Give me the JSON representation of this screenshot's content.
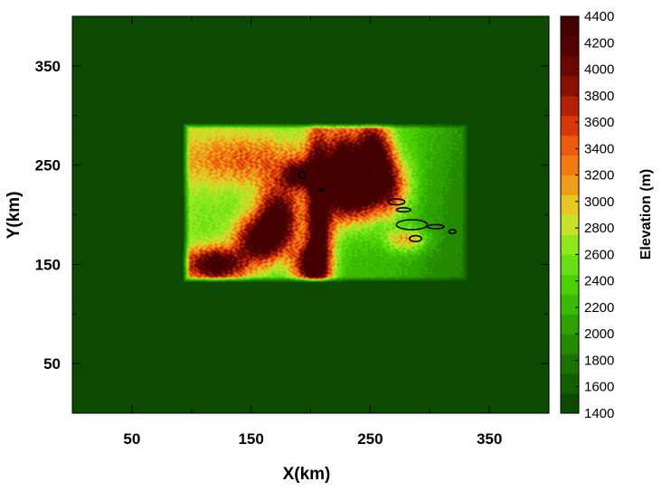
{
  "chart_data": {
    "type": "heatmap",
    "title": "",
    "xlabel": "X(km)",
    "ylabel": "Y(km)",
    "xlim": [
      0,
      400
    ],
    "ylim": [
      0,
      400
    ],
    "x_ticks": [
      50,
      150,
      250,
      350
    ],
    "y_ticks": [
      50,
      150,
      250,
      350
    ],
    "minor_ticks": [
      0,
      100,
      200,
      300,
      400
    ],
    "grid": false,
    "background_level": 1400,
    "terrain_extent": {
      "x": [
        95,
        330
      ],
      "y": [
        135,
        290
      ]
    },
    "contour_color": "#000000",
    "colorbar": {
      "label": "Elevation (m)",
      "min": 1400,
      "max": 4400,
      "step": 150,
      "tick_labels": [
        1400,
        1600,
        1800,
        2000,
        2200,
        2400,
        2600,
        2800,
        3000,
        3200,
        3400,
        3600,
        3800,
        4000,
        4200,
        4400
      ],
      "colors": [
        "#0c4a00",
        "#125e00",
        "#1b7200",
        "#248a00",
        "#2ea200",
        "#3aba00",
        "#4ed000",
        "#66e014",
        "#8ee81c",
        "#c6e22a",
        "#e6c824",
        "#ee9e18",
        "#f27a12",
        "#ee5a0e",
        "#d6380a",
        "#b22008",
        "#8a1006",
        "#6a0804",
        "#520402",
        "#440000"
      ]
    },
    "ridges": [
      {
        "x": 207,
        "y": 200,
        "sx": 8,
        "sy": 60,
        "h": 2300
      },
      {
        "x": 228,
        "y": 245,
        "sx": 9,
        "sy": 28,
        "h": 2200
      },
      {
        "x": 252,
        "y": 262,
        "sx": 10,
        "sy": 22,
        "h": 2300
      },
      {
        "x": 240,
        "y": 220,
        "sx": 14,
        "sy": 18,
        "h": 1700
      },
      {
        "x": 173,
        "y": 200,
        "sx": 12,
        "sy": 22,
        "h": 1900
      },
      {
        "x": 157,
        "y": 175,
        "sx": 14,
        "sy": 16,
        "h": 2000
      },
      {
        "x": 120,
        "y": 150,
        "sx": 18,
        "sy": 12,
        "h": 2100
      },
      {
        "x": 198,
        "y": 150,
        "sx": 10,
        "sy": 14,
        "h": 1700
      },
      {
        "x": 265,
        "y": 230,
        "sx": 12,
        "sy": 20,
        "h": 1500
      },
      {
        "x": 150,
        "y": 255,
        "sx": 40,
        "sy": 18,
        "h": 800
      },
      {
        "x": 190,
        "y": 240,
        "sx": 10,
        "sy": 10,
        "h": 1500
      },
      {
        "x": 280,
        "y": 175,
        "sx": 12,
        "sy": 8,
        "h": 900
      }
    ],
    "lakes": [
      {
        "x": 193,
        "y": 240,
        "rx": 3,
        "ry": 3
      },
      {
        "x": 209,
        "y": 225,
        "rx": 2,
        "ry": 1
      },
      {
        "x": 272,
        "y": 213,
        "rx": 7,
        "ry": 3
      },
      {
        "x": 285,
        "y": 190,
        "rx": 13,
        "ry": 5
      },
      {
        "x": 278,
        "y": 205,
        "rx": 6,
        "ry": 2
      },
      {
        "x": 305,
        "y": 188,
        "rx": 7,
        "ry": 2
      },
      {
        "x": 319,
        "y": 183,
        "rx": 3,
        "ry": 2
      },
      {
        "x": 288,
        "y": 176,
        "rx": 5,
        "ry": 3
      }
    ]
  }
}
